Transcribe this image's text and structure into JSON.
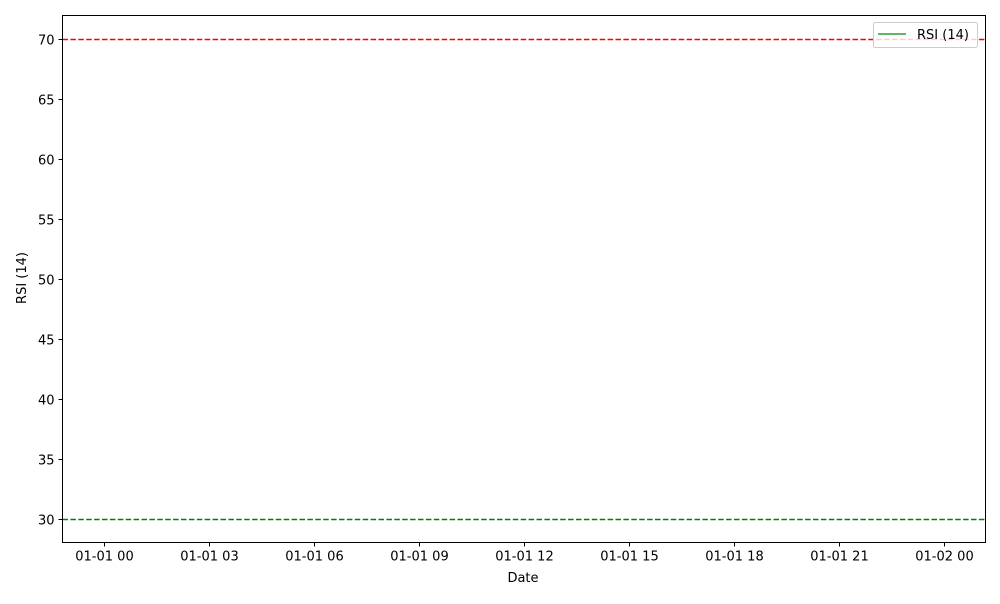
{
  "chart_data": {
    "type": "line",
    "title": "",
    "xlabel": "Date",
    "ylabel": "RSI (14)",
    "x_tick_labels": [
      "01-01 00",
      "01-01 03",
      "01-01 06",
      "01-01 09",
      "01-01 12",
      "01-01 15",
      "01-01 18",
      "01-01 21",
      "01-02 00"
    ],
    "x_tick_hours": [
      0,
      3,
      6,
      9,
      12,
      15,
      18,
      21,
      24
    ],
    "xlim_hours": [
      -1.2,
      25.2
    ],
    "y_ticks": [
      30,
      35,
      40,
      45,
      50,
      55,
      60,
      65,
      70
    ],
    "ylim": [
      28,
      72
    ],
    "grid": false,
    "legend": {
      "placement": "top-right",
      "entries": [
        {
          "label": "RSI (14)",
          "color": "#2ca02c"
        }
      ]
    },
    "series": [
      {
        "name": "RSI (14)",
        "color": "#2ca02c",
        "values": []
      }
    ],
    "reference_lines": [
      {
        "y": 70,
        "color": "#ff0000",
        "style": "dashed"
      },
      {
        "y": 30,
        "color": "#008000",
        "style": "dashed"
      }
    ]
  }
}
